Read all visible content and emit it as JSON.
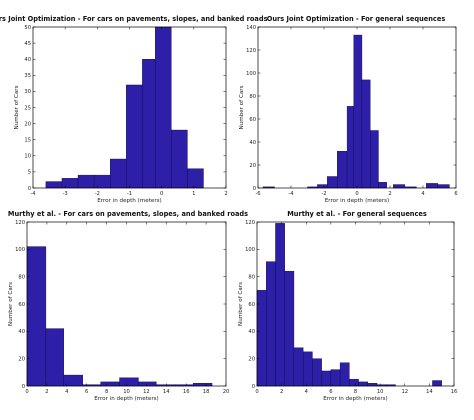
{
  "style": {
    "bar_fill": "#2e1fa8",
    "bar_stroke": "#0b0640",
    "axis_color": "#000000"
  },
  "chart_data": [
    {
      "type": "bar",
      "title": "Ours Joint Optimization - For cars on pavements, slopes, and banked roads",
      "xlabel": "Error in depth (meters)",
      "ylabel": "Number of Cars",
      "xlim": [
        -4,
        2
      ],
      "ylim": [
        0,
        50
      ],
      "xticks": [
        -4,
        -3,
        -2,
        -1,
        0,
        1,
        2
      ],
      "yticks": [
        0,
        5,
        10,
        15,
        20,
        25,
        30,
        35,
        40,
        45,
        50
      ],
      "grid": false,
      "bins": [
        {
          "x0": -3.6,
          "x1": -3.1,
          "count": 2
        },
        {
          "x0": -3.1,
          "x1": -2.6,
          "count": 3
        },
        {
          "x0": -2.6,
          "x1": -2.1,
          "count": 4
        },
        {
          "x0": -2.1,
          "x1": -1.6,
          "count": 4
        },
        {
          "x0": -1.6,
          "x1": -1.1,
          "count": 9
        },
        {
          "x0": -1.1,
          "x1": -0.6,
          "count": 32
        },
        {
          "x0": -0.6,
          "x1": -0.2,
          "count": 40
        },
        {
          "x0": -0.2,
          "x1": 0.3,
          "count": 50
        },
        {
          "x0": 0.3,
          "x1": 0.8,
          "count": 18
        },
        {
          "x0": 0.8,
          "x1": 1.3,
          "count": 6
        }
      ]
    },
    {
      "type": "bar",
      "title": "Ours Joint Optimization - For general sequences",
      "xlabel": "Error in depth (meters)",
      "ylabel": "Number of Cars",
      "xlim": [
        -6,
        6
      ],
      "ylim": [
        0,
        140
      ],
      "xticks": [
        -6,
        -4,
        -2,
        0,
        2,
        4,
        6
      ],
      "yticks": [
        0,
        20,
        40,
        60,
        80,
        100,
        120,
        140
      ],
      "grid": false,
      "bins": [
        {
          "x0": -5.7,
          "x1": -5.0,
          "count": 1
        },
        {
          "x0": -3.0,
          "x1": -2.4,
          "count": 1
        },
        {
          "x0": -2.4,
          "x1": -1.8,
          "count": 3
        },
        {
          "x0": -1.8,
          "x1": -1.2,
          "count": 10
        },
        {
          "x0": -1.2,
          "x1": -0.6,
          "count": 32
        },
        {
          "x0": -0.6,
          "x1": -0.2,
          "count": 71
        },
        {
          "x0": -0.2,
          "x1": 0.3,
          "count": 133
        },
        {
          "x0": 0.3,
          "x1": 0.8,
          "count": 94
        },
        {
          "x0": 0.8,
          "x1": 1.3,
          "count": 50
        },
        {
          "x0": 1.3,
          "x1": 1.8,
          "count": 5
        },
        {
          "x0": 2.2,
          "x1": 2.9,
          "count": 3
        },
        {
          "x0": 2.9,
          "x1": 3.6,
          "count": 1
        },
        {
          "x0": 4.2,
          "x1": 4.9,
          "count": 4
        },
        {
          "x0": 4.9,
          "x1": 5.6,
          "count": 3
        }
      ]
    },
    {
      "type": "bar",
      "title": "Murthy et al. - For cars on pavements, slopes, and banked roads",
      "xlabel": "Error in depth (meters)",
      "ylabel": "Number of Cars",
      "xlim": [
        0,
        20
      ],
      "ylim": [
        0,
        120
      ],
      "xticks": [
        0,
        2,
        4,
        6,
        8,
        10,
        12,
        14,
        16,
        18,
        20
      ],
      "yticks": [
        0,
        20,
        40,
        60,
        80,
        100,
        120
      ],
      "grid": false,
      "bins": [
        {
          "x0": 0.0,
          "x1": 1.9,
          "count": 102
        },
        {
          "x0": 1.9,
          "x1": 3.7,
          "count": 42
        },
        {
          "x0": 3.7,
          "x1": 5.6,
          "count": 8
        },
        {
          "x0": 5.6,
          "x1": 7.4,
          "count": 1
        },
        {
          "x0": 7.4,
          "x1": 9.3,
          "count": 3
        },
        {
          "x0": 9.3,
          "x1": 11.2,
          "count": 6
        },
        {
          "x0": 11.2,
          "x1": 13.0,
          "count": 3
        },
        {
          "x0": 13.0,
          "x1": 14.9,
          "count": 1
        },
        {
          "x0": 14.9,
          "x1": 16.7,
          "count": 1
        },
        {
          "x0": 16.7,
          "x1": 18.6,
          "count": 2
        }
      ]
    },
    {
      "type": "bar",
      "title": "Murthy et al. - For general sequences",
      "xlabel": "Error in depth (meters)",
      "ylabel": "Number of Cars",
      "xlim": [
        0,
        16
      ],
      "ylim": [
        0,
        120
      ],
      "xticks": [
        0,
        2,
        4,
        6,
        8,
        10,
        12,
        14,
        16
      ],
      "yticks": [
        0,
        20,
        40,
        60,
        80,
        100,
        120
      ],
      "grid": false,
      "bins": [
        {
          "x0": 0.0,
          "x1": 0.75,
          "count": 70
        },
        {
          "x0": 0.75,
          "x1": 1.5,
          "count": 91
        },
        {
          "x0": 1.5,
          "x1": 2.25,
          "count": 119
        },
        {
          "x0": 2.25,
          "x1": 3.0,
          "count": 84
        },
        {
          "x0": 3.0,
          "x1": 3.75,
          "count": 28
        },
        {
          "x0": 3.75,
          "x1": 4.5,
          "count": 25
        },
        {
          "x0": 4.5,
          "x1": 5.25,
          "count": 20
        },
        {
          "x0": 5.25,
          "x1": 6.0,
          "count": 11
        },
        {
          "x0": 6.0,
          "x1": 6.75,
          "count": 12
        },
        {
          "x0": 6.75,
          "x1": 7.5,
          "count": 17
        },
        {
          "x0": 7.5,
          "x1": 8.25,
          "count": 5
        },
        {
          "x0": 8.25,
          "x1": 9.0,
          "count": 3
        },
        {
          "x0": 9.0,
          "x1": 9.75,
          "count": 2
        },
        {
          "x0": 9.75,
          "x1": 10.5,
          "count": 1
        },
        {
          "x0": 10.5,
          "x1": 11.25,
          "count": 1
        },
        {
          "x0": 14.25,
          "x1": 15.0,
          "count": 4
        }
      ]
    }
  ]
}
